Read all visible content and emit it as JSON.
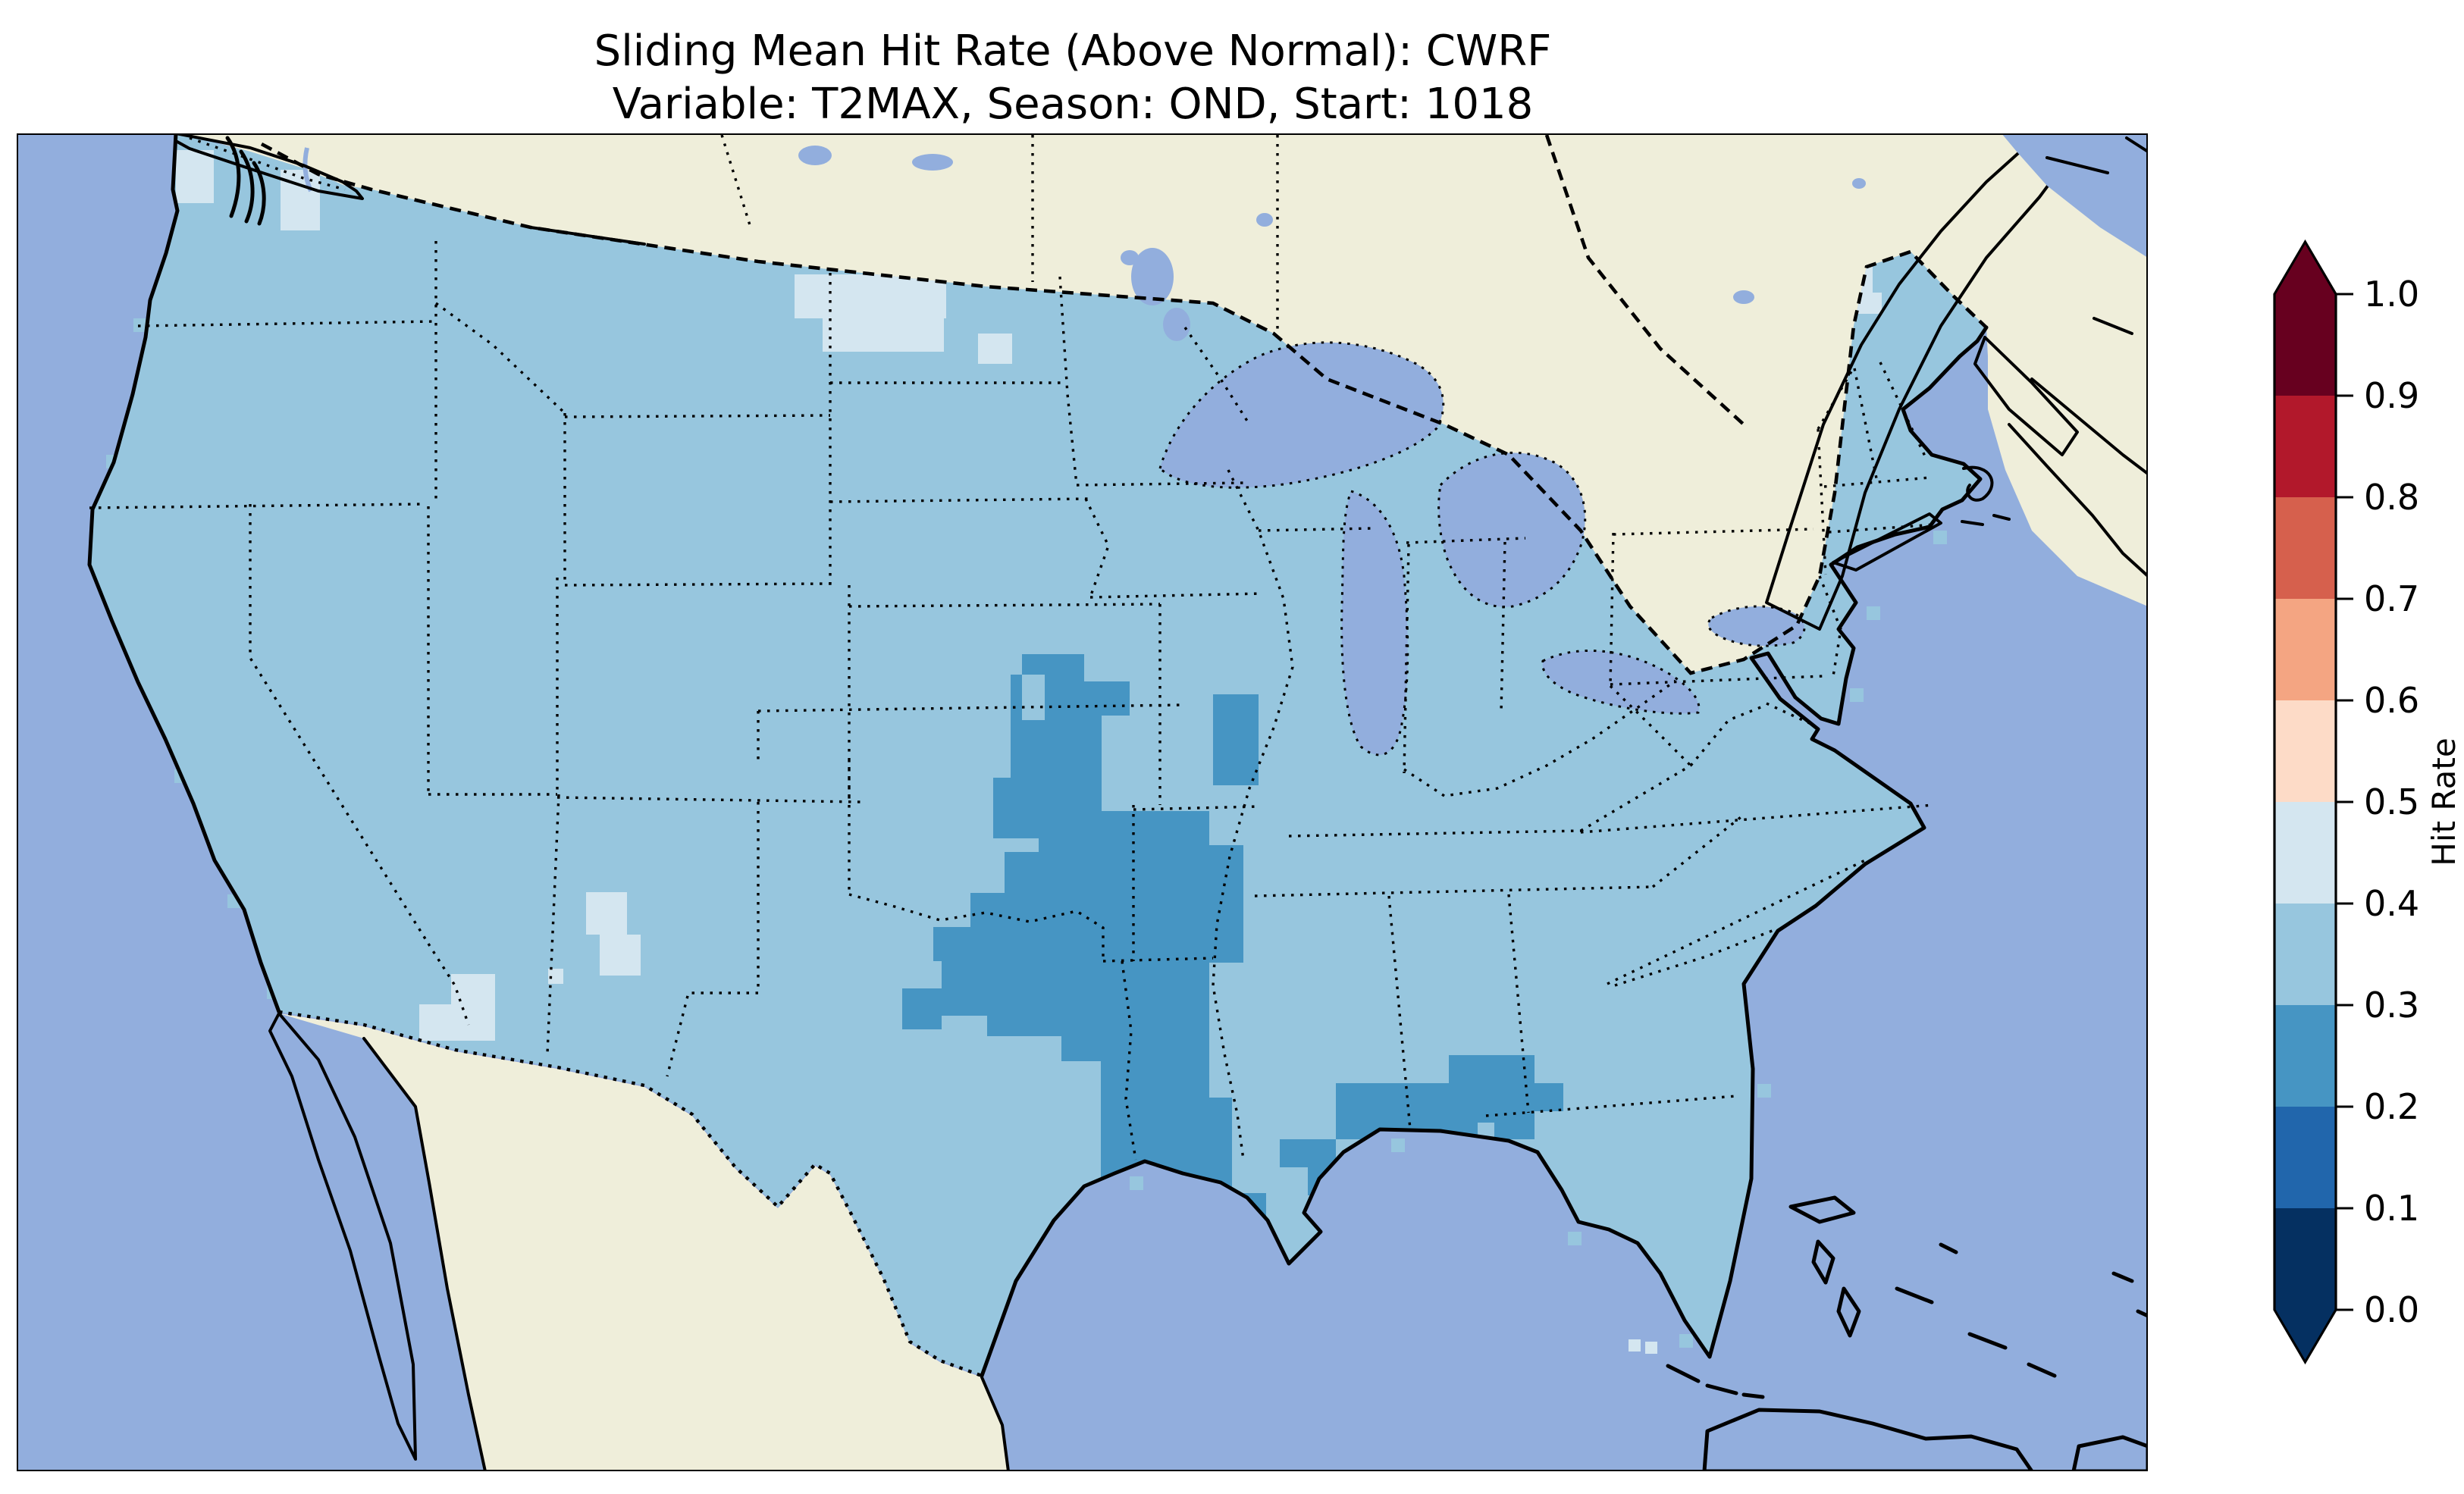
{
  "figure": {
    "title_line1": "Sliding Mean Hit Rate (Above Normal): CWRF",
    "title_line2": "Variable: T2MAX, Season: OND, Start: 1018"
  },
  "palette": {
    "background": "#ffffff",
    "ocean": "#92aedd",
    "foreign_land": "#efeeda",
    "water": "#92aedd",
    "conus_base": "#97c6de",
    "bin_02_03": "#4695c3",
    "bin_04_05": "#d4e6f0",
    "coastline": "#000000",
    "frame": "#000000"
  },
  "chart_data": {
    "type": "heatmap",
    "title": "Sliding Mean Hit Rate (Above Normal): CWRF",
    "subtitle": "Variable: T2MAX, Season: OND, Start: 1018",
    "model": "CWRF",
    "variable": "T2MAX",
    "season": "OND",
    "start": "1018",
    "metric": "Hit Rate (Above Normal)",
    "map_region": "Contiguous United States (gridded forecast hit-rate field)",
    "colorbar": {
      "label": "Hit Rate",
      "orientation": "vertical",
      "extend": "both",
      "tick_labels": [
        "0.0",
        "0.1",
        "0.2",
        "0.3",
        "0.4",
        "0.5",
        "0.6",
        "0.7",
        "0.8",
        "0.9",
        "1.0"
      ],
      "tick_values": [
        0.0,
        0.1,
        0.2,
        0.3,
        0.4,
        0.5,
        0.6,
        0.7,
        0.8,
        0.9,
        1.0
      ],
      "bin_colors_bottom_to_top": [
        "#053061",
        "#2166ac",
        "#4695c3",
        "#97c6de",
        "#d4e6f0",
        "#fddbc7",
        "#f4a582",
        "#d6604d",
        "#b2182b",
        "#67001f"
      ],
      "under_color": "#053061",
      "over_color": "#67001f"
    },
    "values_by_region": [
      {
        "region": "Most of the contiguous United States",
        "hit_rate_bin": "0.3–0.4"
      },
      {
        "region": "Missouri / Arkansas / eastern Oklahoma / Louisiana / east Texas corridor",
        "hit_rate_bin": "0.2–0.3"
      },
      {
        "region": "Gulf Coast: southern Mississippi / Alabama / Florida panhandle patch",
        "hit_rate_bin": "0.2–0.3"
      },
      {
        "region": "Northern North Dakota",
        "hit_rate_bin": "0.4–0.5"
      },
      {
        "region": "Northwestern Washington (Puget Sound area)",
        "hit_rate_bin": "0.4–0.5"
      },
      {
        "region": "Arizona–New Mexico border spots",
        "hit_rate_bin": "0.4–0.5"
      },
      {
        "region": "Northern Maine",
        "hit_rate_bin": "0.4–0.5"
      },
      {
        "region": "Two coastal cells near south Florida",
        "hit_rate_bin": "0.4–0.5"
      }
    ],
    "layout": {
      "grid": false,
      "legend_position": "right colorbar",
      "projection": "conic (Lambert-style) North America view"
    }
  }
}
